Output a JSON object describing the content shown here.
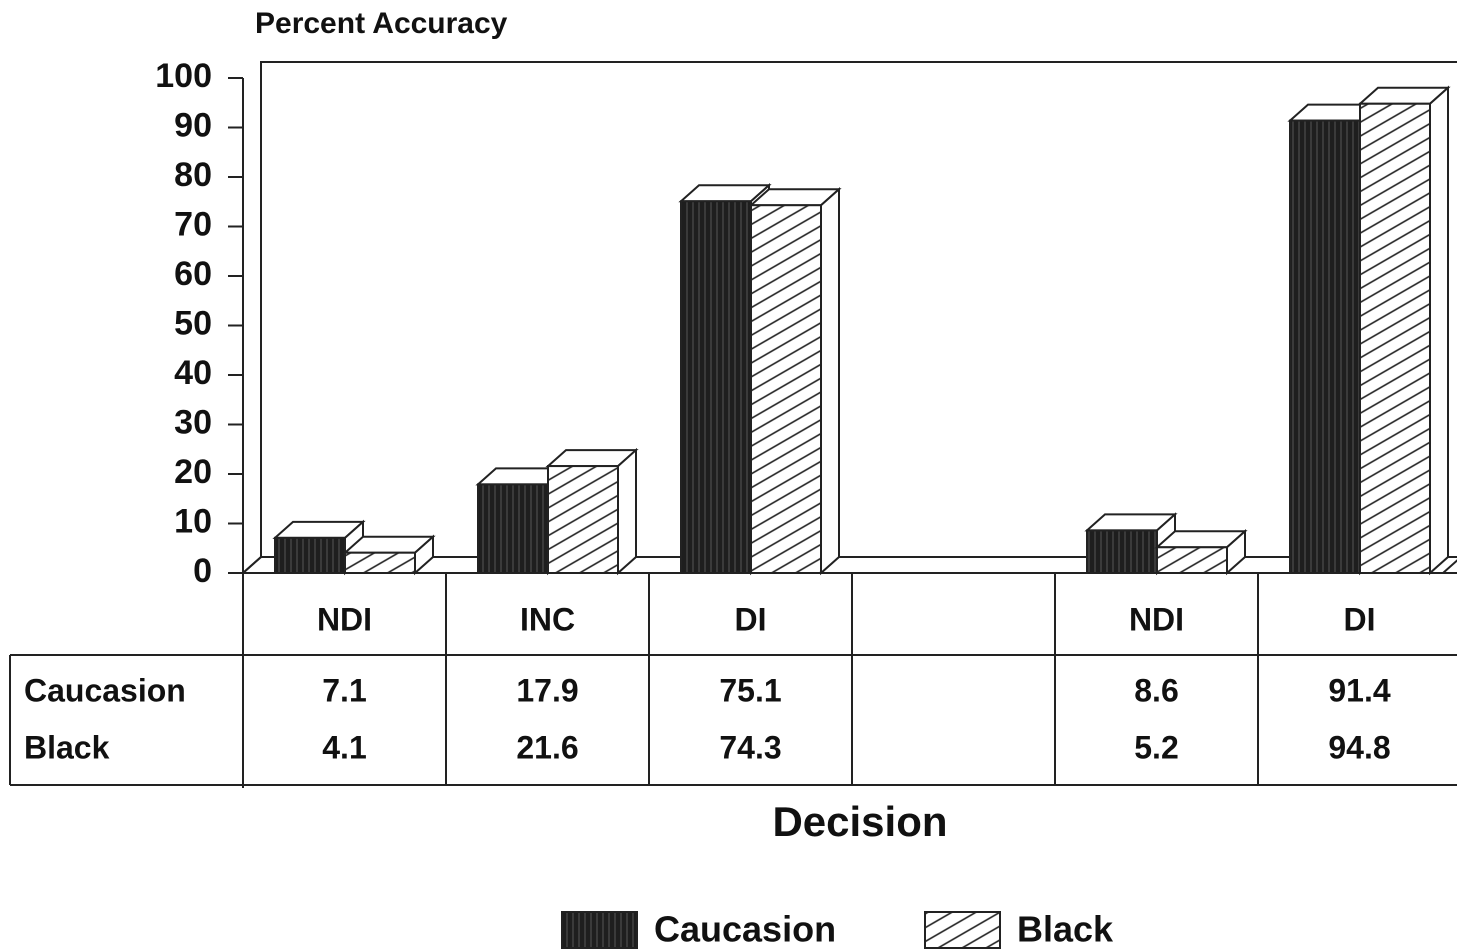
{
  "chart_data": {
    "type": "bar",
    "ylabel": "Percent Accuracy",
    "xlabel": "Decision",
    "categories": [
      "NDI",
      "INC",
      "DI",
      null,
      "NDI",
      "DI"
    ],
    "series": [
      {
        "name": "Caucasion",
        "color": "#1e1e1e",
        "values": [
          7.1,
          17.9,
          75.1,
          null,
          8.6,
          91.4
        ]
      },
      {
        "name": "Black",
        "color": "#ffffff",
        "values": [
          4.1,
          21.6,
          74.3,
          null,
          5.2,
          94.8
        ]
      }
    ],
    "ylim": [
      0,
      100
    ],
    "yticks": [
      0,
      10,
      20,
      30,
      40,
      50,
      60,
      70,
      80,
      90,
      100
    ],
    "legend": "bottom"
  }
}
